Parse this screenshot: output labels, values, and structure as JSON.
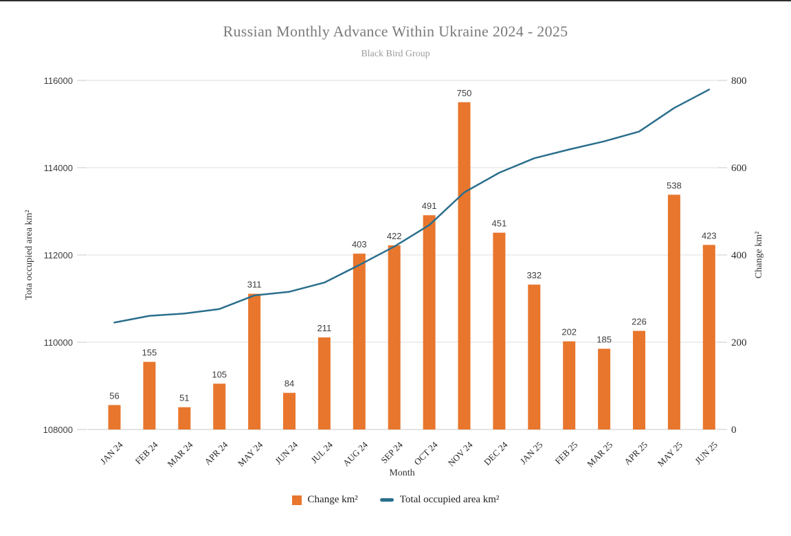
{
  "header": {
    "title": "Russian Monthly Advance Within Ukraine 2024 - 2025",
    "subtitle": "Black Bird Group"
  },
  "legend": {
    "items": [
      {
        "label": "Change km²",
        "marker": "square",
        "color": "#E8762D"
      },
      {
        "label": "Total occupied area km²",
        "marker": "line",
        "color": "#2A6E8C"
      }
    ]
  },
  "colors": {
    "bar": "#E8762D",
    "line": "#2A6E8C",
    "gridline": "#dedede",
    "baseline": "#c9c9c9",
    "tick": "#c9c9c9"
  },
  "chart_data": {
    "type": "bar",
    "subtype": "combo-bar-line-dual-axis",
    "title": "Russian Monthly Advance Within Ukraine 2024 - 2025",
    "subtitle": "Black Bird Group",
    "categories": [
      "JAN 24",
      "FEB 24",
      "MAR 24",
      "APR 24",
      "MAY 24",
      "JUN 24",
      "JUL 24",
      "AUG 24",
      "SEP 24",
      "OCT 24",
      "NOV 24",
      "DEC 24",
      "JAN 25",
      "FEB 25",
      "MAR 25",
      "APR 25",
      "MAY 25",
      "JUN 25"
    ],
    "series": [
      {
        "name": "Change km²",
        "type": "bar",
        "axis": "right",
        "color": "#E8762D",
        "data_labels": true,
        "values": [
          56,
          155,
          51,
          105,
          311,
          84,
          211,
          403,
          422,
          491,
          750,
          451,
          332,
          202,
          185,
          226,
          538,
          423
        ]
      },
      {
        "name": "Total occupied area km²",
        "type": "line",
        "axis": "left",
        "color": "#2A6E8C",
        "data_labels": false,
        "values": [
          110450,
          110605,
          110656,
          110761,
          111072,
          111156,
          111367,
          111770,
          112192,
          112683,
          113433,
          113884,
          114216,
          114418,
          114603,
          114829,
          115367,
          115790
        ]
      }
    ],
    "xlabel": "Month",
    "left_axis": {
      "label": "Tota occupied area km²",
      "min": 108000,
      "max": 116000,
      "ticks": [
        108000,
        110000,
        112000,
        114000,
        116000
      ]
    },
    "right_axis": {
      "label": "Change km²",
      "min": 0,
      "max": 800,
      "ticks": [
        0,
        200,
        400,
        600,
        800
      ]
    },
    "grid": "horizontal",
    "legend_position": "bottom"
  }
}
